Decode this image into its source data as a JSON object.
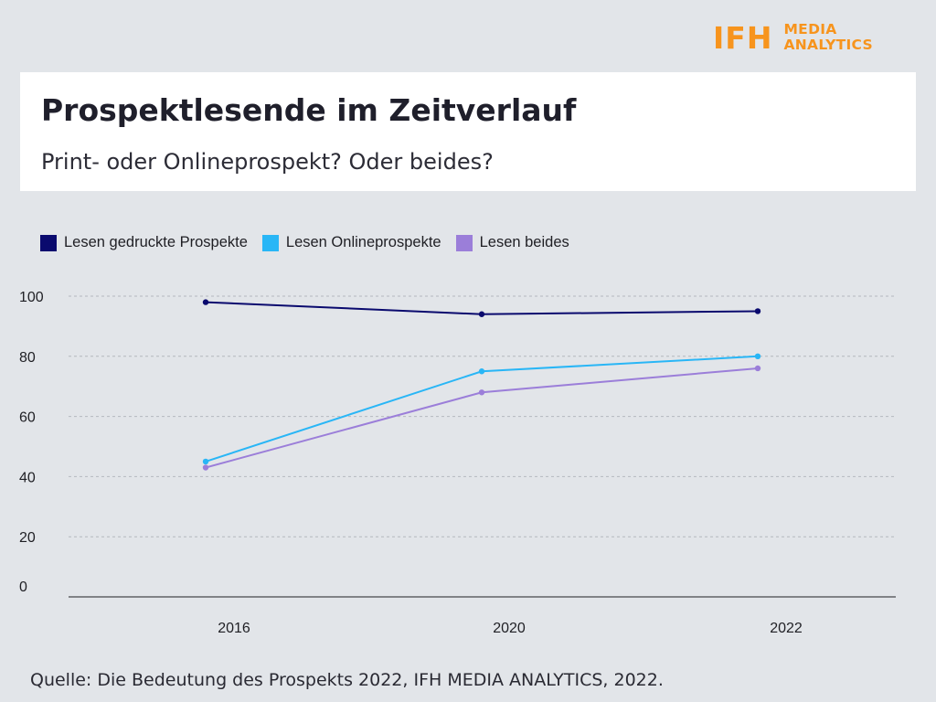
{
  "logo": {
    "mark": "IFH",
    "line1": "MEDIA",
    "line2": "ANALYTICS",
    "color": "#f7941d"
  },
  "header": {
    "title": "Prospektlesende im Zeitverlauf",
    "subtitle": "Print- oder Onlineprospekt? Oder beides?"
  },
  "source": "Quelle: Die Bedeutung des Prospekts 2022, IFH MEDIA ANALYTICS, 2022.",
  "chart_data": {
    "type": "line",
    "title": "Prospektlesende im Zeitverlauf",
    "subtitle": "Print- oder Onlineprospekt? Oder beides?",
    "categories": [
      "2016",
      "2020",
      "2022"
    ],
    "series": [
      {
        "name": "Lesen gedruckte Prospekte",
        "color": "#0a0a6e",
        "values": [
          98,
          94,
          95
        ]
      },
      {
        "name": "Lesen Onlineprospekte",
        "color": "#29b6f6",
        "values": [
          45,
          75,
          80
        ]
      },
      {
        "name": "Lesen beides",
        "color": "#9b7ed9",
        "values": [
          43,
          68,
          76
        ]
      }
    ],
    "ylim": [
      0,
      100
    ],
    "yticks": [
      0,
      20,
      40,
      60,
      80,
      100
    ],
    "xlabel": "",
    "ylabel": "",
    "grid": true,
    "legend_position": "top-left"
  }
}
